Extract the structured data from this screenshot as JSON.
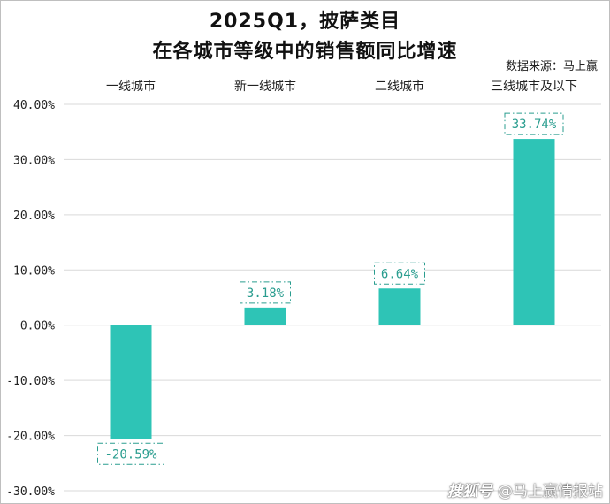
{
  "title": {
    "line1": "2025Q1，披萨类目",
    "line2": "在各城市等级中的销售额同比增速"
  },
  "source_note": "数据来源：马上赢",
  "watermark": {
    "brand": "搜狐号",
    "account": "@马上赢情报站"
  },
  "colors": {
    "bar": "#2ec4b6",
    "label_border": "#2a9d8f",
    "label_text": "#2a9d8f",
    "grid": "#d9d9d9",
    "axis_text": "#222222"
  },
  "chart_data": {
    "type": "bar",
    "title": "2025Q1，披萨类目 在各城市等级中的销售额同比增速",
    "categories": [
      "一线城市",
      "新一线城市",
      "二线城市",
      "三线城市及以下"
    ],
    "values": [
      -20.59,
      3.18,
      6.64,
      33.74
    ],
    "data_labels": [
      "-20.59%",
      "3.18%",
      "6.64%",
      "33.74%"
    ],
    "ylim": [
      -30,
      40
    ],
    "yticks": [
      40,
      30,
      20,
      10,
      0,
      -10,
      -20,
      -30
    ],
    "ytick_labels": [
      "40.00%",
      "30.00%",
      "20.00%",
      "10.00%",
      "0.00%",
      "-10.00%",
      "-20.00%",
      "-30.00%"
    ],
    "category_axis_position": "top",
    "grid": true,
    "legend": "none",
    "xlabel": "",
    "ylabel": ""
  }
}
